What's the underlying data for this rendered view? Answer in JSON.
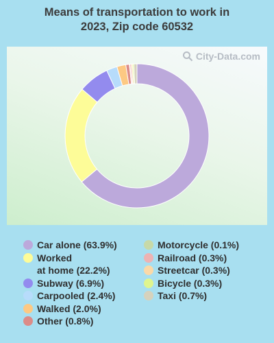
{
  "title_line1": "Means of transportation to work in",
  "title_line2": "2023, Zip code 60532",
  "watermark": "City-Data.com",
  "chart_data": {
    "type": "pie",
    "donut": true,
    "title": "Means of transportation to work in 2023, Zip code 60532",
    "slices": [
      {
        "label": "Car alone (63.9%)",
        "value": 63.9,
        "color": "#bca9db"
      },
      {
        "label": "Worked at home (22.2%)",
        "value": 22.2,
        "color": "#fdfc98"
      },
      {
        "label": "Subway (6.9%)",
        "value": 6.9,
        "color": "#938bee"
      },
      {
        "label": "Carpooled (2.4%)",
        "value": 2.4,
        "color": "#b7dcfb"
      },
      {
        "label": "Walked (2.0%)",
        "value": 2.0,
        "color": "#fdc983"
      },
      {
        "label": "Other (0.8%)",
        "value": 0.8,
        "color": "#dc8c88"
      },
      {
        "label": "Motorcycle (0.1%)",
        "value": 0.1,
        "color": "#c7d9a8"
      },
      {
        "label": "Railroad (0.3%)",
        "value": 0.3,
        "color": "#eeb3b3"
      },
      {
        "label": "Streetcar (0.3%)",
        "value": 0.3,
        "color": "#fbd9a8"
      },
      {
        "label": "Bicycle (0.3%)",
        "value": 0.3,
        "color": "#dff58f"
      },
      {
        "label": "Taxi (0.7%)",
        "value": 0.7,
        "color": "#d6d2bd"
      }
    ],
    "legend": {
      "left": [
        {
          "label": "Car alone (63.9%)",
          "color": "#bca9db"
        },
        {
          "label": "Worked\nat home (22.2%)",
          "color": "#fdfc98"
        },
        {
          "label": "Subway (6.9%)",
          "color": "#938bee"
        },
        {
          "label": "Carpooled (2.4%)",
          "color": "#b7dcfb"
        },
        {
          "label": "Walked (2.0%)",
          "color": "#fdc983"
        },
        {
          "label": "Other (0.8%)",
          "color": "#dc8c88"
        }
      ],
      "right": [
        {
          "label": "Motorcycle (0.1%)",
          "color": "#c7d9a8"
        },
        {
          "label": "Railroad (0.3%)",
          "color": "#eeb3b3"
        },
        {
          "label": "Streetcar (0.3%)",
          "color": "#fbd9a8"
        },
        {
          "label": "Bicycle (0.3%)",
          "color": "#dff58f"
        },
        {
          "label": "Taxi (0.7%)",
          "color": "#d6d2bd"
        }
      ]
    }
  }
}
